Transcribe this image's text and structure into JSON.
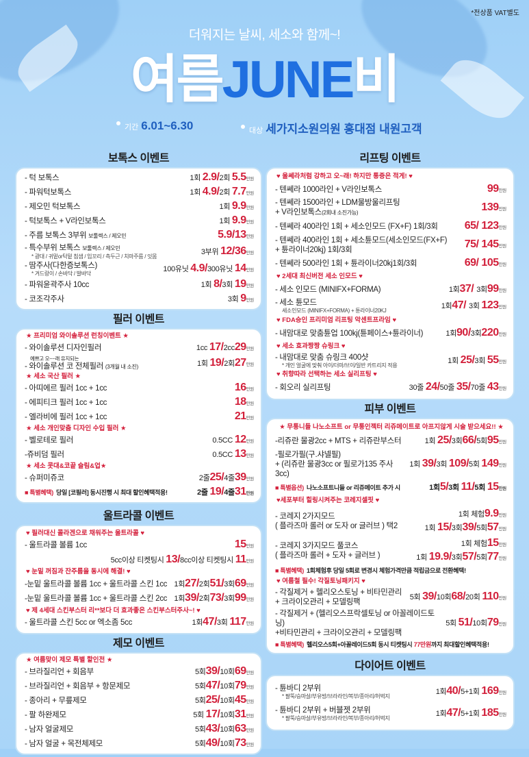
{
  "header": {
    "vat_note": "*전상품 VAT별도",
    "subtitle": "더워지는 날씨, 세소와 함께~!",
    "title_a": "여름",
    "title_b": "JUNE",
    "title_c": "비",
    "period_label": "기간",
    "period": "6.01~6.30",
    "target_label": "대상",
    "target": "세가지소원의원 홍대점 내원고객"
  },
  "unit": "만원",
  "colors": {
    "accent_red": "#d21f3a",
    "accent_blue": "#1f6fe0",
    "background": "#b7dcfa"
  },
  "sections": [
    {
      "title": "보톡스 이벤트",
      "rows": [
        {
          "name": "- 턱 보톡스",
          "price": [
            "1회 ",
            "2.9/",
            "2회 ",
            "5.5"
          ]
        },
        {
          "name": "- 파워턱보톡스",
          "price": [
            "1회 ",
            "4.9/",
            "2회 ",
            "7.7"
          ]
        },
        {
          "name": "- 제오민 턱보톡스",
          "price": [
            "1회 ",
            "9.9"
          ]
        },
        {
          "name": "- 턱보톡스 + V라인보톡스",
          "price": [
            "1회 ",
            "9.9"
          ]
        },
        {
          "name": "- 주름 보톡스 3부위 ",
          "small": "보툴렉스 / 제오민",
          "price": [
            "",
            "5.9/13"
          ]
        },
        {
          "name": "- 특수부위 보톡스 ",
          "small": "보툴렉스 / 제오민",
          "note": "* 광대 / 귀밑or턱밑 침샘 / 입꼬리 / 측두근 / 치마주름 / 잇몸",
          "price": [
            "3부위 ",
            "12/36"
          ]
        },
        {
          "name": "- 땀주사(다한증보톡스)",
          "note": "* 겨드랑이 / 손바닥 / 발바닥",
          "price": [
            "100유닛 ",
            "4.9/",
            "300유닛 ",
            "14"
          ]
        },
        {
          "name": "- 파워윤곽주사 10cc",
          "price": [
            "1회 ",
            "8/",
            "3회 ",
            "19"
          ]
        },
        {
          "name": "- 코조각주사",
          "price": [
            "3회 ",
            "9"
          ]
        }
      ]
    },
    {
      "title": "필러 이벤트",
      "rows": [
        {
          "sub": "★ 프리미엄 와이솔루션 런칭이벤트 ★"
        },
        {
          "name": "- 와이솔루션 디자인필러",
          "price": [
            "1cc ",
            "17/",
            "2cc",
            "29"
          ]
        },
        {
          "pre": "예쁘고 오~~래 유지되는",
          "name": "- 와이솔루션 코 전체필러 ",
          "small": "(3개월 내 소진)",
          "price": [
            "1회 ",
            "19/",
            "2회",
            "27"
          ]
        },
        {
          "sub": "★ 세소 국산 필러 ★"
        },
        {
          "name": "- 아띠에르 필러 1cc + 1cc",
          "price": [
            "",
            "16"
          ]
        },
        {
          "name": "- 에피티크 필러 1cc + 1cc",
          "price": [
            "",
            "18"
          ]
        },
        {
          "name": "- 엘라비에 필러 1cc + 1cc",
          "price": [
            "",
            "21"
          ]
        },
        {
          "sub": "★ 세소 개인맞춤 디자인 수입 필러 ★"
        },
        {
          "name": "- 벨로테로 필러",
          "price": [
            "0.5CC ",
            "12"
          ]
        },
        {
          "name": "-쥬비덤 필러",
          "price": [
            "0.5CC ",
            "13"
          ]
        },
        {
          "sub": "★ 세소 콧대&코끝 슬림&업★"
        },
        {
          "name": "- 슈퍼미쥬코",
          "price": [
            "2줄",
            "25/",
            "4줄",
            "39"
          ]
        },
        {
          "special": "■ 특별혜택)",
          "text": [
            "당일 [코필러] 동시진행 시 최대 할인혜택적용!"
          ],
          "price": [
            "2줄 ",
            "19/",
            "4줄",
            "31"
          ]
        }
      ]
    },
    {
      "title": "울트라콜 이벤트",
      "rows": [
        {
          "sub": "♥ 필러대신 콜라겐으로 채워주는 울트라콜 ♥"
        },
        {
          "name": "- 울트라콜 볼륨 1cc",
          "price": [
            "",
            "15"
          ]
        },
        {
          "name": "",
          "price": [
            "5cc이상 티켓팅시 ",
            "13/",
            "8cc이상 티켓팅시 ",
            "11"
          ]
        },
        {
          "sub": "♥ 눈밑 꺼짐과 잔주름을 동시에 해결! ♥"
        },
        {
          "name": "-눈밑 울트라콜 볼륨 1cc + 울트라콜 스킨 1cc",
          "price": [
            "1회",
            "27/",
            "2회",
            "51/",
            "3회",
            "69"
          ]
        },
        {
          "name": "-눈밑 울트라콜 볼륨 1cc + 울트라콜 스킨 2cc",
          "price": [
            "1회",
            "39/",
            "2회",
            "73/",
            "3회",
            "99"
          ]
        },
        {
          "sub": "♥ 제 4세대 스킨부스터 리**보다 더 효과좋은 스킨부스터주사~! ♥"
        },
        {
          "name": "- 울트라콜 스킨 5cc or 엑소좀 5cc",
          "price": [
            "1회",
            "47/",
            "3회 ",
            "117"
          ]
        }
      ]
    },
    {
      "title": "제모 이벤트",
      "rows": [
        {
          "sub": "★ 여름맞이 제모 특별 할인전 ★"
        },
        {
          "name": "- 브라질리언 + 회음부",
          "price": [
            "5회",
            "39/",
            "10회",
            "69"
          ]
        },
        {
          "name": "- 브라질리언 + 회음부 + 항문제모",
          "price": [
            "5회",
            "47/",
            "10회",
            "79"
          ]
        },
        {
          "name": "- 종아리 + 무릎제모",
          "price": [
            "5회",
            "25/",
            "10회",
            "45"
          ]
        },
        {
          "name": "- 팔 하완제모",
          "price": [
            "5회 ",
            "17/",
            "10회",
            "31"
          ]
        },
        {
          "name": "- 남자 얼굴제모",
          "price": [
            "5회",
            "43/",
            "10회",
            "63"
          ]
        },
        {
          "name": "- 남자 얼굴 + 목전체제모",
          "price": [
            "5회",
            "49/",
            "10회",
            "73"
          ]
        }
      ]
    },
    {
      "title": "리프팅 이벤트",
      "rows": [
        {
          "sub": "♥ 울쎄라처럼 강하고 오~래! 하지만 통증은 적게! ♥"
        },
        {
          "name": "- 텐쎄라 1000라인 + V라인보톡스",
          "price": [
            "",
            "99"
          ]
        },
        {
          "name": "- 텐쎄라 1500라인 + LDM물방울리프팅",
          "line2": "+ V라인보톡스",
          "line2_small": "(2회내 소진가능)",
          "price": [
            "",
            "139"
          ]
        },
        {
          "name": "- 텐쎄라 400라인 1회 + 세소인모드 (FX+F) 1회/3회",
          "price": [
            "",
            "65/ 123"
          ]
        },
        {
          "name": "- 텐쎄라 400라인 1회 + 세소튠모드(세소인모드(FX+F)",
          "line2": "+ 튠라이너20kj) 1회/3회",
          "price": [
            "",
            "75/ 145"
          ]
        },
        {
          "name": "- 텐쎄라 500라인 1회 + 튠라이너20kj1회/3회",
          "price": [
            "",
            "69/ 105"
          ]
        },
        {
          "sub": "♥ 2세대 최신버전 세소 인모드 ♥"
        },
        {
          "name": "- 세소 인모드 (MINIFX+FORMA)",
          "price": [
            "1회",
            "37/ ",
            "3회",
            "99"
          ]
        },
        {
          "name": "- 세소 튠모드",
          "note": "세소인모드 (MINIFX+FORMA) + 튠라이너20KJ",
          "price": [
            "1회",
            "47/ ",
            "3회 ",
            "123"
          ]
        },
        {
          "sub": "♥ FDA승인 프리미엄 리프팅 악센트프라임 ♥"
        },
        {
          "name": "- 내맘대로 맞춤튠업 100kj(튠페이스+튠라이너)",
          "price": [
            "1회",
            "90/",
            "3회",
            "220"
          ]
        },
        {
          "sub": "♥ 세소 효과짱짱 슈링크 ♥"
        },
        {
          "name": "- 내맘대로 맞춤 슈링크 400샷",
          "note": "* 개인 얼굴에 맞춰 아이/더마/브이/일반 카트리지 적용",
          "price": [
            "1회 ",
            "25/",
            "3회 ",
            "55"
          ]
        },
        {
          "sub": "♥ 취향따라 선택하는 세소 실리프팅 ♥"
        },
        {
          "name": "- 회오리 실리프팅",
          "price": [
            "30줄 ",
            "24/",
            "50줄 ",
            "35/",
            "70줄 ",
            "43"
          ]
        }
      ]
    },
    {
      "title": "피부 이벤트",
      "rows": [
        {
          "sub": "★ 무통니들 나노소프트 or 무통인젝터 리쥬메이트로 아프지않게 시술 받으세요!! ★",
          "center": true
        },
        {
          "name": "-리쥬란 물광2cc + MTS + 리쥬란부스터",
          "price": [
            "1회 ",
            "25/",
            "3회",
            "66/",
            "5회",
            "95"
          ]
        },
        {
          "name": "-필로가필(구.샤넬필)",
          "line2": " + (리쥬란 물광3cc or 필로가135 주사3cc)",
          "price": [
            "1회 ",
            "39/",
            "3회 ",
            "109/",
            "5회 ",
            "149"
          ]
        },
        {
          "special": "■ 특별옵션)",
          "text": [
            "나노소프트니들 or 리쥬메이트 추가 시"
          ],
          "price": [
            "1회",
            "5/",
            "3회 ",
            "11/",
            "5회 ",
            "15"
          ]
        },
        {
          "sub": "♥세포부터 힐링시켜주는 코레지셀핏 ♥"
        },
        {
          "name": "- 코레지 2가지모드",
          "line2": " ( 플라즈마 롤러 or 도자 or 글러브 ) 택2",
          "price": [
            "1회 체험",
            "9.9"
          ],
          "price2": [
            "1회 ",
            "15/",
            "3회",
            "39/",
            "5회",
            "57"
          ]
        },
        {
          "name": "- 코레지 3가지모드 풀코스",
          "line2": " ( 플라즈마 롤러 + 도자 + 글러브 )",
          "price": [
            "1회 체험",
            "15"
          ],
          "price2": [
            "1회 ",
            "19.9/",
            "3회",
            "57/",
            "5회",
            "77"
          ]
        },
        {
          "special": "■ 특별혜택)",
          "text": [
            "1회체험후 당일 5회로 변경시 체험가격만큼 적립금으로 전환혜택!"
          ]
        },
        {
          "sub": "♥ 여름철 필수! 각질토닝패키지 ♥"
        },
        {
          "name": "- 각질제거 + 헬리오스토닝 + 비타민관리",
          "line2": "  + 크라이오관리 + 모델링팩",
          "price": [
            "5회 ",
            "39/",
            "10회",
            "68/",
            "20회 ",
            "110"
          ]
        },
        {
          "name": "- 각질제거 + (헬리오스프락셀토닝 or 아꼴레이드토닝)",
          "line2": "  +비타민관리 + 크라이오관리 + 모델링팩",
          "price": [
            "5회 ",
            "51/",
            "10회",
            "79"
          ]
        },
        {
          "special": "■ 특별혜택)",
          "text": [
            "헬리오스5회+아꼴레이드5회 동시 티켓팅시 ",
            "77만원",
            "까지 최대할인혜택적용!"
          ]
        }
      ]
    },
    {
      "title": "다이어트 이벤트",
      "rows": [
        {
          "name": "- 튠바디 2부위",
          "note": "* 팔뚝/승마살/부유방/브라라인/복부/종아리/허벅지",
          "price": [
            "1회",
            "40/",
            "5+1회 ",
            "169"
          ]
        },
        {
          "name": "- 튠바디 2부위 + 버블젯 2부위",
          "note": "* 팔뚝/승마살/부유방/브라라인/복부/종아리/허벅지",
          "price": [
            "1회",
            "47/",
            "5+1회 ",
            "185"
          ]
        }
      ]
    }
  ]
}
